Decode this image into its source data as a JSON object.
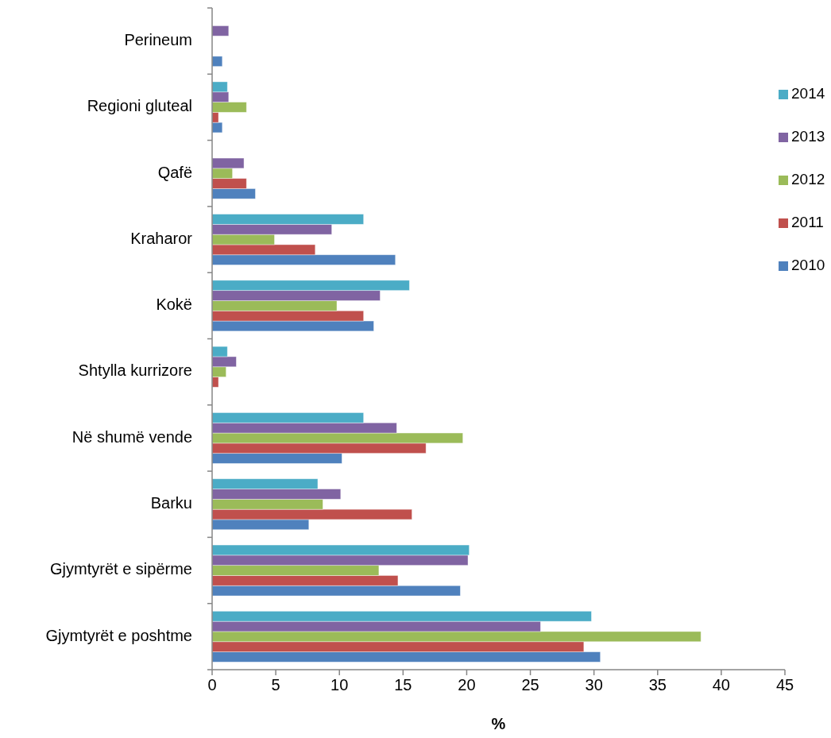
{
  "chart_data": {
    "type": "bar",
    "orientation": "horizontal",
    "xlabel": "%",
    "categories": [
      "Perineum",
      "Regioni gluteal",
      "Qafë",
      "Kraharor",
      "Kokë",
      "Shtylla kurrizore",
      "Në shumë vende",
      "Barku",
      "Gjymtyrët e sipërme",
      "Gjymtyrët e poshtme"
    ],
    "series": [
      {
        "name": "2010",
        "color": "#4f81bd",
        "values": [
          0.8,
          0.8,
          3.4,
          14.4,
          12.7,
          null,
          10.2,
          7.6,
          19.5,
          30.5
        ]
      },
      {
        "name": "2011",
        "color": "#c0504d",
        "values": [
          null,
          0.5,
          2.7,
          8.1,
          11.9,
          0.5,
          16.8,
          15.7,
          14.6,
          29.2
        ]
      },
      {
        "name": "2012",
        "color": "#9bbb59",
        "values": [
          null,
          2.7,
          1.6,
          4.9,
          9.8,
          1.1,
          19.7,
          8.7,
          13.1,
          38.4
        ]
      },
      {
        "name": "2013",
        "color": "#8064a2",
        "values": [
          1.3,
          1.3,
          2.5,
          9.4,
          13.2,
          1.9,
          14.5,
          10.1,
          20.1,
          25.8
        ]
      },
      {
        "name": "2014",
        "color": "#4bacc6",
        "values": [
          null,
          1.2,
          null,
          11.9,
          15.5,
          1.2,
          11.9,
          8.3,
          20.2,
          29.8
        ]
      }
    ],
    "xlim": [
      0,
      45
    ],
    "xticks": [
      0,
      5,
      10,
      15,
      20,
      25,
      30,
      35,
      40,
      45
    ],
    "grid": false,
    "legend": "right"
  }
}
